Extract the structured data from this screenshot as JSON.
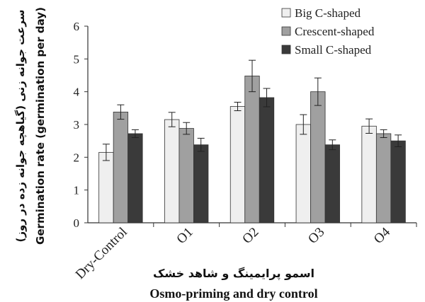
{
  "chart_data": {
    "type": "bar",
    "categories": [
      "Dry-Control",
      "O1",
      "O2",
      "O3",
      "O4"
    ],
    "series": [
      {
        "name": "Big C-shaped",
        "color": "#efefef",
        "values": [
          2.15,
          3.15,
          3.55,
          3.0,
          2.95
        ],
        "errors": [
          0.25,
          0.22,
          0.13,
          0.3,
          0.22
        ]
      },
      {
        "name": "Crescent-shaped",
        "color": "#a0a0a0",
        "values": [
          3.38,
          2.88,
          4.48,
          4.0,
          2.72
        ],
        "errors": [
          0.22,
          0.18,
          0.48,
          0.42,
          0.12
        ]
      },
      {
        "name": "Small C-shaped",
        "color": "#3a3a3a",
        "values": [
          2.72,
          2.38,
          3.82,
          2.38,
          2.5
        ],
        "errors": [
          0.12,
          0.2,
          0.28,
          0.15,
          0.18
        ]
      }
    ],
    "ylim": [
      0,
      6
    ],
    "yticks": [
      "0",
      "1",
      "2",
      "3",
      "4",
      "5",
      "6"
    ],
    "ylabel_fa": "سرعت جوانه زنی (گیاهچه جوانه زده در روز)",
    "ylabel_en": "Germination rate (germination per day)",
    "xlabel_fa": "اسمو پرایمینگ و شاهد خشک",
    "xlabel_en": "Osmo-priming and dry control",
    "legend_position": "top-right",
    "grid": false
  }
}
